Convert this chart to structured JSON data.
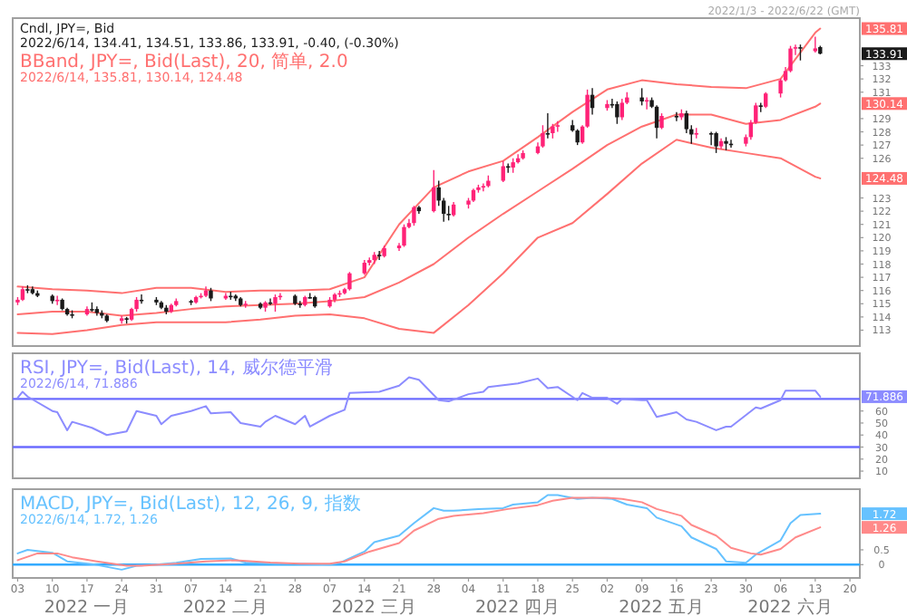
{
  "chart_data": [
    {
      "type": "candlestick",
      "title": "Cndl, JPY=, Bid",
      "subtitle": "2022/6/14, 134.41, 134.51, 133.86, 133.91, -0.40, (-0.30%)",
      "x": [
        "2022-01-03",
        "2022-01-04",
        "2022-01-05",
        "2022-01-06",
        "2022-01-07",
        "2022-01-10",
        "2022-01-11",
        "2022-01-12",
        "2022-01-13",
        "2022-01-14",
        "2022-01-17",
        "2022-01-18",
        "2022-01-19",
        "2022-01-20",
        "2022-01-21",
        "2022-01-24",
        "2022-01-25",
        "2022-01-26",
        "2022-01-27",
        "2022-01-28",
        "2022-01-31",
        "2022-02-01",
        "2022-02-02",
        "2022-02-03",
        "2022-02-04",
        "2022-02-07",
        "2022-02-08",
        "2022-02-09",
        "2022-02-10",
        "2022-02-11",
        "2022-02-14",
        "2022-02-15",
        "2022-02-16",
        "2022-02-17",
        "2022-02-18",
        "2022-02-21",
        "2022-02-22",
        "2022-02-23",
        "2022-02-24",
        "2022-02-25",
        "2022-02-28",
        "2022-03-01",
        "2022-03-02",
        "2022-03-03",
        "2022-03-04",
        "2022-03-07",
        "2022-03-08",
        "2022-03-09",
        "2022-03-10",
        "2022-03-11",
        "2022-03-14",
        "2022-03-15",
        "2022-03-16",
        "2022-03-17",
        "2022-03-18",
        "2022-03-21",
        "2022-03-22",
        "2022-03-23",
        "2022-03-24",
        "2022-03-25",
        "2022-03-28",
        "2022-03-29",
        "2022-03-30",
        "2022-03-31",
        "2022-04-01",
        "2022-04-04",
        "2022-04-05",
        "2022-04-06",
        "2022-04-07",
        "2022-04-08",
        "2022-04-11",
        "2022-04-12",
        "2022-04-13",
        "2022-04-14",
        "2022-04-15",
        "2022-04-18",
        "2022-04-19",
        "2022-04-20",
        "2022-04-21",
        "2022-04-22",
        "2022-04-25",
        "2022-04-26",
        "2022-04-27",
        "2022-04-28",
        "2022-04-29",
        "2022-05-02",
        "2022-05-03",
        "2022-05-04",
        "2022-05-05",
        "2022-05-06",
        "2022-05-09",
        "2022-05-10",
        "2022-05-11",
        "2022-05-12",
        "2022-05-13",
        "2022-05-16",
        "2022-05-17",
        "2022-05-18",
        "2022-05-19",
        "2022-05-20",
        "2022-05-23",
        "2022-05-24",
        "2022-05-25",
        "2022-05-26",
        "2022-05-27",
        "2022-05-30",
        "2022-05-31",
        "2022-06-01",
        "2022-06-02",
        "2022-06-03",
        "2022-06-06",
        "2022-06-07",
        "2022-06-08",
        "2022-06-09",
        "2022-06-10",
        "2022-06-13",
        "2022-06-14"
      ],
      "ohlc": [
        [
          115.1,
          115.5,
          114.9,
          115.3
        ],
        [
          115.3,
          116.3,
          115.2,
          116.1
        ],
        [
          116.1,
          116.4,
          115.8,
          116.1
        ],
        [
          116.1,
          116.3,
          115.7,
          115.8
        ],
        [
          115.8,
          116.0,
          115.5,
          115.6
        ],
        [
          115.6,
          115.7,
          115.0,
          115.2
        ],
        [
          115.2,
          115.6,
          114.9,
          115.3
        ],
        [
          115.3,
          115.4,
          114.5,
          114.6
        ],
        [
          114.6,
          114.7,
          114.1,
          114.2
        ],
        [
          114.2,
          114.5,
          113.9,
          114.2
        ],
        [
          114.2,
          114.8,
          114.1,
          114.6
        ],
        [
          114.6,
          115.1,
          114.4,
          114.6
        ],
        [
          114.6,
          114.8,
          114.1,
          114.3
        ],
        [
          114.3,
          114.5,
          113.9,
          114.1
        ],
        [
          114.1,
          114.2,
          113.6,
          113.7
        ],
        [
          113.7,
          114.1,
          113.5,
          113.9
        ],
        [
          113.9,
          114.0,
          113.5,
          113.8
        ],
        [
          113.8,
          114.7,
          113.7,
          114.6
        ],
        [
          114.6,
          115.5,
          114.4,
          115.3
        ],
        [
          115.3,
          115.7,
          115.0,
          115.3
        ],
        [
          115.3,
          115.5,
          114.9,
          115.1
        ],
        [
          115.1,
          115.2,
          114.6,
          114.7
        ],
        [
          114.7,
          114.9,
          114.2,
          114.4
        ],
        [
          114.4,
          115.0,
          114.3,
          114.9
        ],
        [
          114.9,
          115.4,
          114.8,
          115.2
        ],
        [
          115.2,
          115.3,
          114.9,
          115.1
        ],
        [
          115.1,
          115.6,
          115.0,
          115.5
        ],
        [
          115.5,
          115.8,
          115.4,
          115.6
        ],
        [
          115.6,
          116.3,
          115.5,
          116.0
        ],
        [
          116.0,
          116.2,
          115.2,
          115.4
        ],
        [
          115.4,
          115.8,
          115.3,
          115.6
        ],
        [
          115.6,
          115.9,
          115.3,
          115.6
        ],
        [
          115.6,
          115.7,
          115.2,
          115.4
        ],
        [
          115.4,
          115.5,
          114.8,
          114.9
        ],
        [
          114.9,
          115.2,
          114.7,
          115.0
        ],
        [
          115.0,
          115.1,
          114.6,
          114.7
        ],
        [
          114.7,
          115.2,
          114.4,
          115.1
        ],
        [
          115.1,
          115.4,
          114.9,
          115.0
        ],
        [
          115.0,
          115.7,
          114.4,
          115.5
        ],
        [
          115.5,
          115.8,
          115.3,
          115.6
        ],
        [
          115.6,
          115.7,
          114.9,
          115.0
        ],
        [
          115.0,
          115.2,
          114.7,
          114.9
        ],
        [
          114.9,
          115.6,
          114.8,
          115.5
        ],
        [
          115.5,
          115.8,
          115.4,
          115.5
        ],
        [
          115.5,
          115.6,
          114.7,
          114.8
        ],
        [
          114.8,
          115.5,
          114.7,
          115.3
        ],
        [
          115.3,
          115.8,
          115.1,
          115.7
        ],
        [
          115.7,
          116.0,
          115.5,
          115.8
        ],
        [
          115.8,
          116.2,
          115.7,
          116.1
        ],
        [
          116.1,
          117.4,
          116.0,
          117.3
        ],
        [
          117.3,
          118.3,
          117.2,
          118.1
        ],
        [
          118.1,
          118.5,
          117.9,
          118.3
        ],
        [
          118.3,
          118.9,
          118.0,
          118.7
        ],
        [
          118.7,
          119.0,
          118.3,
          118.6
        ],
        [
          118.6,
          119.4,
          118.5,
          119.2
        ],
        [
          119.2,
          119.6,
          119.0,
          119.4
        ],
        [
          119.4,
          121.0,
          119.3,
          120.8
        ],
        [
          120.8,
          121.4,
          120.7,
          121.1
        ],
        [
          121.1,
          122.4,
          120.9,
          122.3
        ],
        [
          122.3,
          122.4,
          121.8,
          122.0
        ],
        [
          122.0,
          125.1,
          121.9,
          123.8
        ],
        [
          123.8,
          124.3,
          122.4,
          122.8
        ],
        [
          122.8,
          123.0,
          121.2,
          121.8
        ],
        [
          121.8,
          122.4,
          121.3,
          121.7
        ],
        [
          121.7,
          122.7,
          121.6,
          122.5
        ],
        [
          122.5,
          123.0,
          122.2,
          122.8
        ],
        [
          122.8,
          123.7,
          122.7,
          123.6
        ],
        [
          123.6,
          124.0,
          123.4,
          123.8
        ],
        [
          123.8,
          124.1,
          123.5,
          123.9
        ],
        [
          123.9,
          124.7,
          123.8,
          124.3
        ],
        [
          124.3,
          125.8,
          124.2,
          125.4
        ],
        [
          125.4,
          125.6,
          124.9,
          125.3
        ],
        [
          125.3,
          126.0,
          124.9,
          125.7
        ],
        [
          125.7,
          126.3,
          125.6,
          126.0
        ],
        [
          126.0,
          126.6,
          125.9,
          126.4
        ],
        [
          126.4,
          127.2,
          126.3,
          126.9
        ],
        [
          126.9,
          128.5,
          126.8,
          127.9
        ],
        [
          127.9,
          129.4,
          127.5,
          127.9
        ],
        [
          127.9,
          128.6,
          127.5,
          128.4
        ],
        [
          128.4,
          128.8,
          128.0,
          128.5
        ],
        [
          128.5,
          128.9,
          128.0,
          128.1
        ],
        [
          128.1,
          128.2,
          127.0,
          127.2
        ],
        [
          127.2,
          128.5,
          127.1,
          128.4
        ],
        [
          128.4,
          131.2,
          128.3,
          130.8
        ],
        [
          130.8,
          131.3,
          129.3,
          129.8
        ],
        [
          129.8,
          130.4,
          129.6,
          130.1
        ],
        [
          130.1,
          130.5,
          129.8,
          130.1
        ],
        [
          130.1,
          130.3,
          128.6,
          129.1
        ],
        [
          129.1,
          130.5,
          128.9,
          130.2
        ],
        [
          130.2,
          131.0,
          130.1,
          130.6
        ],
        [
          130.6,
          131.3,
          130.0,
          130.3
        ],
        [
          130.3,
          130.6,
          129.7,
          130.4
        ],
        [
          130.4,
          130.6,
          129.8,
          129.9
        ],
        [
          129.9,
          130.0,
          127.5,
          128.3
        ],
        [
          128.3,
          129.4,
          128.2,
          129.2
        ],
        [
          129.2,
          129.5,
          128.8,
          129.1
        ],
        [
          129.1,
          129.7,
          128.9,
          129.4
        ],
        [
          129.4,
          129.6,
          127.9,
          128.2
        ],
        [
          128.2,
          128.5,
          127.1,
          127.8
        ],
        [
          127.8,
          128.3,
          127.5,
          127.9
        ],
        [
          127.9,
          128.0,
          127.0,
          127.9
        ],
        [
          127.9,
          128.0,
          126.4,
          126.9
        ],
        [
          126.9,
          127.5,
          126.7,
          127.3
        ],
        [
          127.3,
          127.6,
          126.6,
          127.1
        ],
        [
          127.1,
          127.4,
          126.8,
          127.1
        ],
        [
          127.1,
          127.8,
          126.9,
          127.6
        ],
        [
          127.6,
          128.9,
          127.4,
          128.7
        ],
        [
          128.7,
          130.2,
          128.6,
          130.0
        ],
        [
          130.0,
          130.2,
          129.5,
          129.9
        ],
        [
          129.9,
          131.0,
          129.8,
          130.9
        ],
        [
          130.9,
          132.0,
          130.6,
          131.9
        ],
        [
          131.9,
          132.9,
          131.8,
          132.6
        ],
        [
          132.6,
          134.5,
          132.5,
          134.3
        ],
        [
          134.3,
          134.6,
          133.8,
          134.4
        ],
        [
          134.4,
          134.6,
          133.4,
          134.4
        ],
        [
          134.1,
          135.2,
          134.0,
          134.31
        ],
        [
          134.41,
          134.51,
          133.86,
          133.91
        ]
      ],
      "colors": [
        "#ff2277",
        "#ff2277",
        "#1a1a1a",
        "#1a1a1a",
        "#1a1a1a",
        "#1a1a1a",
        "#ff2277",
        "#1a1a1a",
        "#1a1a1a",
        "#1a1a1a",
        "#ff2277",
        "#1a1a1a",
        "#1a1a1a",
        "#1a1a1a",
        "#1a1a1a",
        "#ff2277",
        "#1a1a1a",
        "#ff2277",
        "#ff2277",
        "#1a1a1a",
        "#1a1a1a",
        "#1a1a1a",
        "#1a1a1a",
        "#ff2277",
        "#ff2277",
        "#1a1a1a",
        "#ff2277",
        "#ff2277",
        "#ff2277",
        "#1a1a1a",
        "#ff2277",
        "#1a1a1a",
        "#1a1a1a",
        "#1a1a1a",
        "#ff2277",
        "#1a1a1a",
        "#ff2277",
        "#1a1a1a",
        "#ff2277",
        "#ff2277",
        "#1a1a1a",
        "#1a1a1a",
        "#ff2277",
        "#1a1a1a",
        "#1a1a1a",
        "#ff2277",
        "#ff2277",
        "#ff2277",
        "#ff2277",
        "#ff2277",
        "#ff2277",
        "#ff2277",
        "#ff2277",
        "#1a1a1a",
        "#ff2277",
        "#ff2277",
        "#ff2277",
        "#ff2277",
        "#ff2277",
        "#1a1a1a",
        "#ff2277",
        "#1a1a1a",
        "#1a1a1a",
        "#1a1a1a",
        "#ff2277",
        "#ff2277",
        "#ff2277",
        "#ff2277",
        "#ff2277",
        "#ff2277",
        "#ff2277",
        "#1a1a1a",
        "#ff2277",
        "#ff2277",
        "#ff2277",
        "#ff2277",
        "#ff2277",
        "#1a1a1a",
        "#ff2277",
        "#ff2277",
        "#1a1a1a",
        "#1a1a1a",
        "#ff2277",
        "#ff2277",
        "#1a1a1a",
        "#ff2277",
        "#1a1a1a",
        "#1a1a1a",
        "#ff2277",
        "#ff2277",
        "#1a1a1a",
        "#ff2277",
        "#1a1a1a",
        "#1a1a1a",
        "#ff2277",
        "#1a1a1a",
        "#ff2277",
        "#1a1a1a",
        "#1a1a1a",
        "#ff2277",
        "#1a1a1a",
        "#1a1a1a",
        "#ff2277",
        "#1a1a1a",
        "#1a1a1a",
        "#ff2277",
        "#ff2277",
        "#ff2277",
        "#1a1a1a",
        "#ff2277",
        "#ff2277",
        "#ff2277",
        "#ff2277",
        "#ff2277",
        "#1a1a1a",
        "#ff2277",
        "#1a1a1a"
      ],
      "series": [
        {
          "type": "line",
          "color": "#ff7070",
          "x": [
            "2022-01-03",
            "2022-01-10",
            "2022-01-17",
            "2022-01-24",
            "2022-01-31",
            "2022-02-07",
            "2022-02-14",
            "2022-02-21",
            "2022-02-28",
            "2022-03-07",
            "2022-03-14",
            "2022-03-21",
            "2022-03-28",
            "2022-04-04",
            "2022-04-11",
            "2022-04-18",
            "2022-04-25",
            "2022-05-02",
            "2022-05-09",
            "2022-05-16",
            "2022-05-23",
            "2022-05-30",
            "2022-06-06",
            "2022-06-13",
            "2022-06-14"
          ],
          "values": [
            116.3,
            116.1,
            116.0,
            115.8,
            116.2,
            116.2,
            115.9,
            116.0,
            116.0,
            116.1,
            117.0,
            121.0,
            123.8,
            125.0,
            125.8,
            127.6,
            129.5,
            131.2,
            131.9,
            131.6,
            131.4,
            131.3,
            132.0,
            135.5,
            135.81
          ]
        },
        {
          "type": "line",
          "color": "#ff7070",
          "x": [
            "2022-01-03",
            "2022-01-10",
            "2022-01-17",
            "2022-01-24",
            "2022-01-31",
            "2022-02-07",
            "2022-02-14",
            "2022-02-21",
            "2022-02-28",
            "2022-03-07",
            "2022-03-14",
            "2022-03-21",
            "2022-03-28",
            "2022-04-04",
            "2022-04-11",
            "2022-04-18",
            "2022-04-25",
            "2022-05-02",
            "2022-05-09",
            "2022-05-16",
            "2022-05-23",
            "2022-05-30",
            "2022-06-06",
            "2022-06-13",
            "2022-06-14"
          ],
          "values": [
            114.2,
            114.4,
            114.4,
            114.1,
            114.3,
            114.6,
            114.8,
            114.9,
            115.0,
            115.2,
            115.5,
            116.6,
            118.0,
            120.0,
            121.8,
            123.5,
            125.2,
            127.0,
            128.4,
            129.3,
            129.3,
            128.6,
            128.9,
            129.9,
            130.14
          ]
        },
        {
          "type": "line",
          "color": "#ff7070",
          "x": [
            "2022-01-03",
            "2022-01-10",
            "2022-01-17",
            "2022-01-24",
            "2022-01-31",
            "2022-02-07",
            "2022-02-14",
            "2022-02-21",
            "2022-02-28",
            "2022-03-07",
            "2022-03-14",
            "2022-03-21",
            "2022-03-28",
            "2022-04-04",
            "2022-04-11",
            "2022-04-18",
            "2022-04-25",
            "2022-05-02",
            "2022-05-09",
            "2022-05-16",
            "2022-05-23",
            "2022-05-30",
            "2022-06-06",
            "2022-06-13",
            "2022-06-14"
          ],
          "values": [
            112.8,
            112.7,
            113.0,
            113.4,
            113.6,
            113.6,
            113.6,
            113.8,
            114.1,
            114.2,
            113.9,
            113.1,
            112.8,
            114.9,
            117.3,
            120.0,
            121.1,
            123.3,
            125.6,
            127.4,
            126.8,
            126.4,
            126.0,
            124.6,
            124.48
          ]
        }
      ],
      "xlim": [
        "2022-01-02",
        "2022-06-22"
      ],
      "ylim": [
        111.8,
        136.6
      ],
      "yticks": [
        113,
        114,
        115,
        116,
        117,
        118,
        119,
        120,
        121,
        122,
        123,
        {
          "value": 124.48,
          "label": "124.48"
        },
        126,
        127,
        128,
        129,
        {
          "value": 130.14,
          "label": "130.14"
        },
        131,
        132,
        133,
        {
          "value": 133.91,
          "label": "133.91"
        },
        {
          "value": 135.81,
          "label": "135.81"
        }
      ],
      "tick_labels": "y",
      "annotations": [
        "BBand, JPY=, Bid(Last), 20, 简单, 2.0",
        "2022/6/14, 135.81, 130.14, 124.48",
        "2022/1/3 - 2022/6/22 (GMT)"
      ]
    },
    {
      "type": "line",
      "title": "RSI, JPY=, Bid(Last), 14, 威尔德平滑",
      "subtitle": "2022/6/14, 71.886",
      "series": [
        {
          "color": "#8c8cff",
          "x": [
            "2022-01-03",
            "2022-01-04",
            "2022-01-05",
            "2022-01-10",
            "2022-01-11",
            "2022-01-13",
            "2022-01-14",
            "2022-01-18",
            "2022-01-21",
            "2022-01-25",
            "2022-01-27",
            "2022-01-31",
            "2022-02-01",
            "2022-02-03",
            "2022-02-07",
            "2022-02-10",
            "2022-02-11",
            "2022-02-15",
            "2022-02-17",
            "2022-02-21",
            "2022-02-22",
            "2022-02-24",
            "2022-02-28",
            "2022-03-02",
            "2022-03-03",
            "2022-03-07",
            "2022-03-10",
            "2022-03-11",
            "2022-03-17",
            "2022-03-21",
            "2022-03-23",
            "2022-03-25",
            "2022-03-29",
            "2022-03-31",
            "2022-04-04",
            "2022-04-07",
            "2022-04-08",
            "2022-04-14",
            "2022-04-18",
            "2022-04-20",
            "2022-04-22",
            "2022-04-26",
            "2022-04-27",
            "2022-04-29",
            "2022-05-02",
            "2022-05-04",
            "2022-05-05",
            "2022-05-09",
            "2022-05-10",
            "2022-05-12",
            "2022-05-16",
            "2022-05-18",
            "2022-05-20",
            "2022-05-24",
            "2022-05-26",
            "2022-05-27",
            "2022-06-01",
            "2022-06-02",
            "2022-06-06",
            "2022-06-07",
            "2022-06-10",
            "2022-06-13",
            "2022-06-14"
          ],
          "values": [
            71,
            76,
            72,
            60,
            59,
            44,
            51,
            46,
            40,
            43,
            60,
            56,
            49,
            56,
            60,
            64,
            58,
            59,
            50,
            47,
            51,
            56,
            49,
            56,
            47,
            56,
            61,
            75,
            76,
            81,
            88,
            86,
            69,
            68,
            74,
            76,
            80,
            83,
            87,
            79,
            80,
            69,
            75,
            71,
            71,
            66,
            70,
            69,
            69,
            55,
            59,
            53,
            51,
            44,
            47,
            47,
            63,
            62,
            69,
            77,
            77,
            77,
            71.886
          ]
        }
      ],
      "xlim": [
        "2022-01-02",
        "2022-06-22"
      ],
      "ylim": [
        4,
        108
      ],
      "yticks": [
        10,
        20,
        30,
        40,
        50,
        60,
        {
          "value": 71.886,
          "label": "71.886"
        }
      ],
      "tick_labels": "y",
      "ref_lines": [
        {
          "axis": "y",
          "value": 70,
          "color": "#6b6bff"
        },
        {
          "axis": "y",
          "value": 30,
          "color": "#6b6bff"
        }
      ]
    },
    {
      "type": "line",
      "title": "MACD, JPY=, Bid(Last), 12, 26, 9, 指数",
      "subtitle": "2022/6/14, 1.72, 1.26",
      "series": [
        {
          "color": "#66c2ff",
          "x": [
            "2022-01-03",
            "2022-01-05",
            "2022-01-10",
            "2022-01-13",
            "2022-01-18",
            "2022-01-24",
            "2022-01-27",
            "2022-01-31",
            "2022-02-04",
            "2022-02-09",
            "2022-02-15",
            "2022-02-18",
            "2022-02-24",
            "2022-03-01",
            "2022-03-07",
            "2022-03-09",
            "2022-03-14",
            "2022-03-16",
            "2022-03-21",
            "2022-03-24",
            "2022-03-28",
            "2022-03-30",
            "2022-04-01",
            "2022-04-06",
            "2022-04-11",
            "2022-04-13",
            "2022-04-18",
            "2022-04-20",
            "2022-04-22",
            "2022-04-26",
            "2022-04-29",
            "2022-05-03",
            "2022-05-06",
            "2022-05-10",
            "2022-05-12",
            "2022-05-17",
            "2022-05-19",
            "2022-05-24",
            "2022-05-26",
            "2022-05-30",
            "2022-06-01",
            "2022-06-06",
            "2022-06-08",
            "2022-06-10",
            "2022-06-14"
          ],
          "values": [
            0.38,
            0.5,
            0.4,
            0.11,
            0.02,
            -0.17,
            -0.04,
            0.0,
            0.06,
            0.19,
            0.21,
            0.07,
            0.03,
            0.03,
            0.0,
            0.06,
            0.44,
            0.76,
            0.98,
            1.4,
            1.91,
            1.82,
            1.82,
            1.88,
            1.91,
            2.03,
            2.11,
            2.35,
            2.35,
            2.22,
            2.26,
            2.22,
            2.03,
            1.91,
            1.59,
            1.3,
            0.92,
            0.53,
            0.11,
            0.06,
            0.34,
            0.82,
            1.4,
            1.68,
            1.72
          ]
        },
        {
          "color": "#ff8a8a",
          "x": [
            "2022-01-03",
            "2022-01-07",
            "2022-01-11",
            "2022-01-14",
            "2022-01-19",
            "2022-01-25",
            "2022-01-28",
            "2022-02-04",
            "2022-02-10",
            "2022-02-16",
            "2022-02-23",
            "2022-03-01",
            "2022-03-07",
            "2022-03-10",
            "2022-03-15",
            "2022-03-21",
            "2022-03-24",
            "2022-03-29",
            "2022-04-01",
            "2022-04-07",
            "2022-04-12",
            "2022-04-18",
            "2022-04-21",
            "2022-04-25",
            "2022-04-28",
            "2022-05-02",
            "2022-05-05",
            "2022-05-09",
            "2022-05-12",
            "2022-05-17",
            "2022-05-19",
            "2022-05-24",
            "2022-05-27",
            "2022-05-31",
            "2022-06-02",
            "2022-06-06",
            "2022-06-09",
            "2022-06-14"
          ],
          "values": [
            0.15,
            0.38,
            0.38,
            0.25,
            0.11,
            -0.04,
            -0.04,
            0.03,
            0.11,
            0.15,
            0.07,
            0.03,
            0.03,
            0.11,
            0.44,
            0.73,
            1.15,
            1.55,
            1.65,
            1.74,
            1.88,
            2.01,
            2.16,
            2.26,
            2.26,
            2.26,
            2.22,
            2.11,
            1.88,
            1.65,
            1.34,
            0.98,
            0.57,
            0.38,
            0.34,
            0.53,
            0.92,
            1.26
          ]
        }
      ],
      "xlim": [
        "2022-01-02",
        "2022-06-22"
      ],
      "ylim": [
        -0.45,
        2.55
      ],
      "yticks": [
        0,
        0.5,
        {
          "value": 1.26,
          "label": "1.26"
        },
        {
          "value": 1.72,
          "label": "1.72"
        }
      ],
      "xticks": [
        {
          "value": "2022-01-03",
          "label": "03"
        },
        {
          "value": "2022-01-10",
          "label": "10"
        },
        {
          "value": "2022-01-17",
          "label": "17"
        },
        {
          "value": "2022-01-24",
          "label": "24"
        },
        {
          "value": "2022-01-31",
          "label": "31"
        },
        {
          "value": "2022-02-07",
          "label": "07"
        },
        {
          "value": "2022-02-14",
          "label": "14"
        },
        {
          "value": "2022-02-21",
          "label": "21"
        },
        {
          "value": "2022-02-28",
          "label": "28"
        },
        {
          "value": "2022-03-07",
          "label": "07"
        },
        {
          "value": "2022-03-14",
          "label": "14"
        },
        {
          "value": "2022-03-21",
          "label": "21"
        },
        {
          "value": "2022-03-28",
          "label": "28"
        },
        {
          "value": "2022-04-04",
          "label": "04"
        },
        {
          "value": "2022-04-11",
          "label": "11"
        },
        {
          "value": "2022-04-18",
          "label": "18"
        },
        {
          "value": "2022-04-25",
          "label": "25"
        },
        {
          "value": "2022-05-02",
          "label": "02"
        },
        {
          "value": "2022-05-09",
          "label": "09"
        },
        {
          "value": "2022-05-16",
          "label": "16"
        },
        {
          "value": "2022-05-23",
          "label": "23"
        },
        {
          "value": "2022-05-30",
          "label": "30"
        },
        {
          "value": "2022-06-06",
          "label": "06"
        },
        {
          "value": "2022-06-13",
          "label": "13"
        },
        {
          "value": "2022-06-20",
          "label": "20"
        }
      ],
      "x2lim": [
        "2022-01-02",
        "2022-06-22"
      ],
      "x2ticks": [
        {
          "value": "2022-01-17",
          "label": "2022 一月"
        },
        {
          "value": "2022-02-14",
          "label": "2022 二月"
        },
        {
          "value": "2022-03-16",
          "label": "2022 三月"
        },
        {
          "value": "2022-04-14",
          "label": "2022 四月"
        },
        {
          "value": "2022-05-13",
          "label": "2022 五月"
        },
        {
          "value": "2022-06-08",
          "label": "2022 六月"
        }
      ],
      "ref_lines": [
        {
          "axis": "y",
          "value": 0,
          "color": "#33aaff"
        }
      ]
    }
  ]
}
